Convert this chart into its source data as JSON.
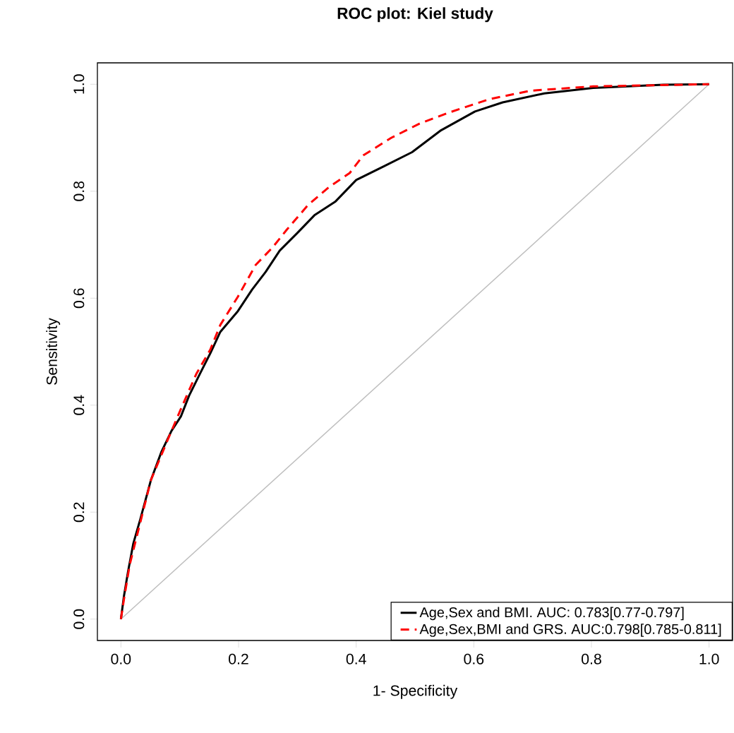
{
  "chart_data": {
    "type": "line",
    "title": "ROC plot: Kiel study",
    "xlabel": "1- Specificity",
    "ylabel": "Sensitivity",
    "xlim": [
      -0.04,
      1.04
    ],
    "ylim": [
      -0.04,
      1.04
    ],
    "xticks": [
      {
        "value": 0,
        "label": "0.0"
      },
      {
        "value": 0.2,
        "label": "0.2"
      },
      {
        "value": 0.4,
        "label": "0.4"
      },
      {
        "value": 0.6,
        "label": "0.6"
      },
      {
        "value": 0.8,
        "label": "0.8"
      },
      {
        "value": 1,
        "label": "1.0"
      }
    ],
    "yticks": [
      {
        "value": 0,
        "label": "0.0"
      },
      {
        "value": 0.2,
        "label": "0.2"
      },
      {
        "value": 0.4,
        "label": "0.4"
      },
      {
        "value": 0.6,
        "label": "0.6"
      },
      {
        "value": 0.8,
        "label": "0.8"
      },
      {
        "value": 1,
        "label": "1.0"
      }
    ],
    "grid": false,
    "legend": "bottom right",
    "marker": "none",
    "series": [
      {
        "name": "Age,Sex and BMI. AUC: 0.783[0.77-0.797]",
        "color": "#000000",
        "line_style": "solid",
        "x": [
          0,
          0.005,
          0.012,
          0.021,
          0.033,
          0.051,
          0.069,
          0.086,
          0.102,
          0.116,
          0.134,
          0.152,
          0.169,
          0.199,
          0.223,
          0.246,
          0.27,
          0.3,
          0.329,
          0.365,
          0.4,
          0.448,
          0.495,
          0.543,
          0.602,
          0.649,
          0.72,
          0.803,
          0.922,
          1
        ],
        "values": [
          0,
          0.042,
          0.088,
          0.141,
          0.187,
          0.26,
          0.313,
          0.352,
          0.379,
          0.418,
          0.458,
          0.497,
          0.537,
          0.576,
          0.616,
          0.649,
          0.689,
          0.722,
          0.755,
          0.781,
          0.821,
          0.847,
          0.873,
          0.913,
          0.949,
          0.966,
          0.983,
          0.993,
          0.999,
          1
        ]
      },
      {
        "name": "Age,Sex,BMI and GRS. AUC:0.798[0.785-0.811]",
        "color": "#ff0000",
        "line_style": "dashed",
        "x": [
          0,
          0.005,
          0.015,
          0.033,
          0.051,
          0.081,
          0.104,
          0.128,
          0.152,
          0.169,
          0.199,
          0.229,
          0.258,
          0.282,
          0.318,
          0.353,
          0.389,
          0.412,
          0.46,
          0.507,
          0.555,
          0.626,
          0.697,
          0.803,
          1
        ],
        "values": [
          0,
          0.036,
          0.102,
          0.181,
          0.26,
          0.339,
          0.398,
          0.458,
          0.504,
          0.55,
          0.603,
          0.662,
          0.695,
          0.728,
          0.774,
          0.807,
          0.834,
          0.867,
          0.9,
          0.926,
          0.946,
          0.972,
          0.988,
          0.996,
          1
        ]
      },
      {
        "color": "#bebebe",
        "line_style": "solid",
        "x": [
          0,
          1
        ],
        "values": [
          0,
          1
        ]
      }
    ]
  }
}
